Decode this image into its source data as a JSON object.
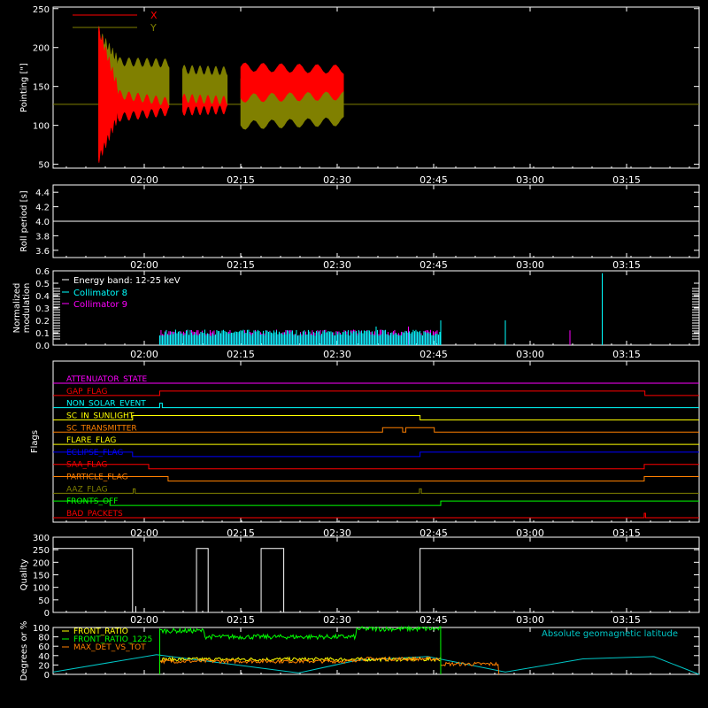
{
  "chart_data": [
    {
      "type": "line",
      "ylabel": "Pointing [\"]",
      "ylim": [
        45,
        252
      ],
      "yticks": [
        50,
        100,
        150,
        200,
        250
      ],
      "xticks": [
        "02:00",
        "02:15",
        "02:30",
        "02:45",
        "03:00",
        "03:15"
      ],
      "legend": "top-left",
      "baseline": 127,
      "series": [
        {
          "name": "X",
          "color": "#ff0000",
          "segments": [
            {
              "t": [
                0.07,
                0.1
              ],
              "hi": [
                225,
                150
              ],
              "lo": [
                55,
                110
              ]
            },
            {
              "t": [
                0.1,
                0.18
              ],
              "hi": [
                140,
                130
              ],
              "lo": [
                110,
                118
              ]
            },
            {
              "t": [
                0.2,
                0.27
              ],
              "hi": [
                135,
                132
              ],
              "lo": [
                118,
                120
              ]
            },
            {
              "t": [
                0.29,
                0.45
              ],
              "hi": [
                175,
                172
              ],
              "lo": [
                135,
                138
              ]
            }
          ]
        },
        {
          "name": "Y",
          "color": "#808000",
          "segments": [
            {
              "t": [
                0.07,
                0.1
              ],
              "hi": [
                220,
                185
              ],
              "lo": [
                60,
                140
              ]
            },
            {
              "t": [
                0.1,
                0.18
              ],
              "hi": [
                182,
                180
              ],
              "lo": [
                118,
                120
              ]
            },
            {
              "t": [
                0.2,
                0.27
              ],
              "hi": [
                172,
                170
              ],
              "lo": [
                120,
                122
              ]
            },
            {
              "t": [
                0.29,
                0.45
              ],
              "hi": [
                160,
                150
              ],
              "lo": [
                100,
                105
              ]
            }
          ]
        }
      ]
    },
    {
      "type": "line",
      "ylabel": "Roll period [s]",
      "ylim": [
        3.5,
        4.5
      ],
      "yticks": [
        3.6,
        3.8,
        4.0,
        4.2,
        4.4
      ],
      "xticks": [
        "02:00",
        "02:15",
        "02:30",
        "02:45",
        "03:00",
        "03:15"
      ],
      "series": [
        {
          "name": "",
          "color": "#ffffff",
          "value": 4.0
        }
      ]
    },
    {
      "type": "bar",
      "ylabel": "Normalized modulation",
      "ylim": [
        0.0,
        0.6
      ],
      "yticks": [
        0.0,
        0.1,
        0.2,
        0.3,
        0.4,
        0.5,
        0.6
      ],
      "xticks": [
        "02:00",
        "02:15",
        "02:30",
        "02:45",
        "03:00",
        "03:15"
      ],
      "legend": "top-left",
      "legend_title": "Energy band: 12-25 keV",
      "series": [
        {
          "name": "Collimator 8",
          "color": "#00ffff",
          "typical": 0.1,
          "peaks": [
            [
              0.5,
              0.15
            ],
            [
              0.6,
              0.2
            ],
            [
              0.7,
              0.2
            ],
            [
              0.85,
              0.58
            ]
          ]
        },
        {
          "name": "Collimator 9",
          "color": "#ff00ff",
          "typical": 0.1,
          "peaks": [
            [
              0.5,
              0.12
            ],
            [
              0.55,
              0.15
            ],
            [
              0.8,
              0.12
            ]
          ]
        }
      ]
    },
    {
      "type": "line",
      "ylabel": "Flags",
      "xticks": [
        "02:00",
        "02:15",
        "02:30",
        "02:45",
        "03:00",
        "03:15"
      ],
      "flags": [
        {
          "name": "ATTENUATOR_STATE",
          "color": "#ff00ff",
          "edges": []
        },
        {
          "name": "GAP_FLAG",
          "color": "#ff0000",
          "edges": [
            [
              0.165,
              1
            ],
            [
              0.916,
              0
            ]
          ]
        },
        {
          "name": "NON_SOLAR_EVENT",
          "color": "#00ffff",
          "edges": [
            [
              0.165,
              1
            ],
            [
              0.169,
              0
            ]
          ]
        },
        {
          "name": "SC_IN_SUNLIGHT",
          "color": "#ffff00",
          "edges": [
            [
              0.123,
              1
            ],
            [
              0.568,
              0
            ]
          ]
        },
        {
          "name": "SC_TRANSMITTER",
          "color": "#ff8000",
          "edges": [
            [
              0.51,
              1
            ],
            [
              0.541,
              0
            ],
            [
              0.546,
              1
            ],
            [
              0.59,
              0
            ]
          ]
        },
        {
          "name": "FLARE_FLAG",
          "color": "#ffff00",
          "edges": []
        },
        {
          "name": "ECLIPSE_FLAG",
          "color": "#0000ff",
          "edges": [
            [
              0.123,
              0
            ],
            [
              0.568,
              1
            ]
          ]
        },
        {
          "name": "SAA_FLAG",
          "color": "#ff0000",
          "edges": [
            [
              0.148,
              0
            ],
            [
              0.915,
              1
            ]
          ]
        },
        {
          "name": "PARTICLE_FLAG",
          "color": "#ff8000",
          "edges": [
            [
              0.178,
              0
            ],
            [
              0.915,
              1
            ]
          ]
        },
        {
          "name": "AAZ_FLAG",
          "color": "#808000",
          "edges": [
            [
              0.124,
              1
            ],
            [
              0.127,
              0
            ],
            [
              0.567,
              1
            ],
            [
              0.57,
              0
            ]
          ]
        },
        {
          "name": "FRONTS_OFF",
          "color": "#00ff00",
          "edges": [
            [
              0.088,
              0
            ],
            [
              0.6,
              1
            ]
          ]
        },
        {
          "name": "BAD_PACKETS",
          "color": "#ff0000",
          "edges": [
            [
              0.915,
              1
            ],
            [
              0.917,
              0
            ]
          ]
        }
      ]
    },
    {
      "type": "line",
      "ylabel": "Quality",
      "ylim": [
        0,
        300
      ],
      "yticks": [
        0,
        50,
        100,
        150,
        200,
        250,
        300
      ],
      "xticks": [
        "02:00",
        "02:15",
        "02:30",
        "02:45",
        "03:00",
        "03:15"
      ],
      "series": [
        {
          "name": "",
          "color": "#ffffff",
          "steps": [
            [
              0,
              255
            ],
            [
              0.123,
              0
            ],
            [
              0.222,
              255
            ],
            [
              0.24,
              0
            ],
            [
              0.322,
              255
            ],
            [
              0.357,
              0
            ],
            [
              0.568,
              255
            ]
          ]
        }
      ]
    },
    {
      "type": "line",
      "ylabel": "Degrees or %",
      "ylim": [
        0,
        100
      ],
      "yticks": [
        0,
        20,
        40,
        60,
        80,
        100
      ],
      "xticks": [
        "02:00",
        "02:15",
        "02:30",
        "02:45",
        "03:00",
        "03:15"
      ],
      "legend": "top-left",
      "legend_right": "Absolute geomagnetic latitude",
      "series": [
        {
          "name": "FRONT_RATIO",
          "color": "#ffff00",
          "start": 0.165,
          "end": 0.6,
          "level": 32,
          "noise": 4
        },
        {
          "name": "FRONT_RATIO_1225",
          "color": "#00ff00",
          "start": 0.165,
          "end": 0.6,
          "pieces": [
            [
              0.165,
              0.235,
              93
            ],
            [
              0.235,
              0.47,
              80
            ],
            [
              0.47,
              0.6,
              97
            ]
          ],
          "noise": 5
        },
        {
          "name": "MAX_DET_VS_TOT",
          "color": "#ff8000",
          "start": 0.165,
          "end": 0.69,
          "pieces": [
            [
              0.165,
              0.47,
              28
            ],
            [
              0.47,
              0.6,
              33
            ],
            [
              0.6,
              0.69,
              22
            ]
          ],
          "noise": 4
        },
        {
          "name": "Absolute geomagnetic latitude",
          "color": "#00c8c8",
          "points": [
            [
              0,
              5
            ],
            [
              0.16,
              42
            ],
            [
              0.38,
              3
            ],
            [
              0.47,
              30
            ],
            [
              0.58,
              38
            ],
            [
              0.7,
              5
            ],
            [
              0.82,
              33
            ],
            [
              0.93,
              38
            ],
            [
              1.0,
              0
            ]
          ]
        }
      ]
    }
  ]
}
